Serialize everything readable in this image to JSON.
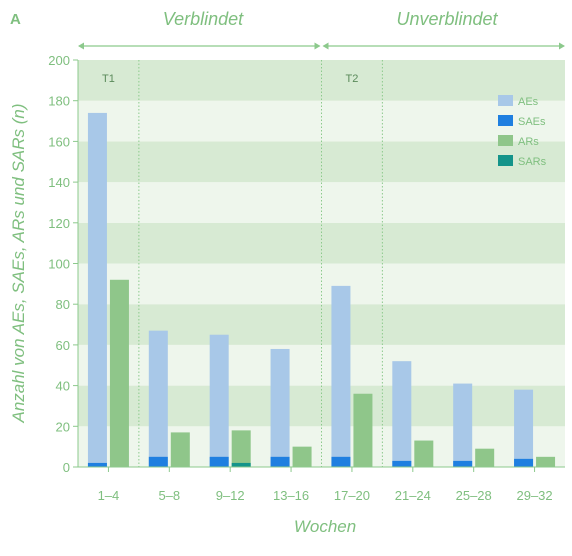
{
  "panel_label": "A",
  "sections": [
    {
      "label": "Verblindet"
    },
    {
      "label": "Unverblindet"
    }
  ],
  "time_markers": [
    "T1",
    "T2"
  ],
  "colors": {
    "text_green": "#7fbf7f",
    "axis_green": "#8cc98c",
    "band_dark": "#d7ead3",
    "band_light": "#eef6ec",
    "AEs": "#a8c8e8",
    "SAEs": "#1f7fe0",
    "ARs": "#8fc68a",
    "SARs": "#14948a"
  },
  "chart_data": {
    "type": "bar",
    "title": "",
    "xlabel": "Wochen",
    "ylabel": "Anzahl von AEs, SAEs, ARs und SARs (n)",
    "ylim": [
      0,
      200
    ],
    "yticks": [
      0,
      20,
      40,
      60,
      80,
      100,
      120,
      140,
      160,
      180,
      200
    ],
    "categories": [
      "1–4",
      "5–8",
      "9–12",
      "13–16",
      "17–20",
      "21–24",
      "25–28",
      "29–32"
    ],
    "series": [
      {
        "name": "AEs",
        "values": [
          174,
          67,
          65,
          58,
          89,
          52,
          41,
          38
        ]
      },
      {
        "name": "SAEs",
        "values": [
          2,
          5,
          5,
          5,
          5,
          3,
          3,
          4
        ]
      },
      {
        "name": "ARs",
        "values": [
          92,
          17,
          18,
          10,
          36,
          13,
          9,
          5
        ]
      },
      {
        "name": "SARs",
        "values": [
          0,
          0,
          2,
          0,
          0,
          0,
          0,
          0
        ]
      }
    ],
    "legend_position": "top-right",
    "grid": "alternating horizontal bands"
  }
}
